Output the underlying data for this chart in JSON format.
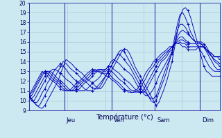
{
  "xlabel": "Température (°c)",
  "bg_color": "#cce8f0",
  "grid_color": "#aaccd8",
  "line_color": "#0000bb",
  "ylim": [
    9,
    20
  ],
  "yticks": [
    9,
    10,
    11,
    12,
    13,
    14,
    15,
    16,
    17,
    18,
    19,
    20
  ],
  "day_labels": [
    "Jeu",
    "Ven",
    "Sam",
    "Dim"
  ],
  "day_positions": [
    0.185,
    0.435,
    0.66,
    0.895
  ],
  "num_points": 73,
  "lines": [
    [
      10.5,
      10.2,
      9.8,
      9.5,
      9.3,
      9.2,
      9.5,
      10.0,
      10.5,
      11.0,
      11.5,
      12.0,
      12.8,
      13.5,
      14.2,
      14.0,
      13.8,
      13.5,
      13.2,
      13.0,
      12.8,
      12.5,
      12.2,
      12.0,
      11.8,
      11.5,
      11.3,
      11.2,
      11.5,
      12.0,
      12.5,
      13.0,
      13.5,
      14.0,
      14.5,
      15.0,
      15.3,
      15.2,
      14.8,
      14.2,
      13.5,
      13.0,
      12.5,
      12.0,
      11.5,
      11.0,
      10.5,
      10.0,
      9.5,
      9.8,
      10.5,
      11.2,
      12.0,
      13.0,
      14.0,
      15.5,
      17.0,
      18.5,
      19.3,
      19.5,
      19.2,
      18.5,
      17.5,
      16.5,
      15.5,
      14.5,
      13.5,
      13.0,
      12.8,
      12.5,
      12.5,
      12.5,
      12.5
    ],
    [
      10.5,
      10.2,
      9.8,
      9.5,
      9.5,
      10.0,
      10.5,
      11.0,
      11.5,
      12.0,
      12.5,
      13.0,
      13.5,
      14.0,
      13.8,
      13.5,
      13.2,
      13.0,
      12.8,
      12.5,
      12.2,
      12.0,
      11.8,
      11.5,
      11.3,
      11.2,
      11.2,
      11.5,
      12.0,
      12.5,
      13.0,
      13.5,
      14.0,
      14.5,
      15.0,
      15.2,
      15.0,
      14.5,
      14.0,
      13.5,
      13.0,
      12.5,
      12.0,
      11.5,
      11.0,
      10.5,
      10.0,
      9.8,
      10.0,
      10.8,
      11.5,
      12.2,
      13.0,
      14.0,
      15.0,
      16.5,
      17.8,
      18.8,
      19.0,
      18.5,
      17.8,
      17.0,
      16.5,
      15.8,
      15.5,
      15.0,
      14.5,
      14.0,
      13.5,
      13.2,
      13.0,
      13.0,
      13.0
    ],
    [
      10.5,
      10.0,
      9.8,
      9.8,
      10.2,
      10.8,
      11.2,
      11.8,
      12.2,
      12.8,
      13.2,
      13.5,
      13.8,
      13.5,
      13.2,
      12.8,
      12.5,
      12.2,
      12.0,
      11.8,
      11.5,
      11.2,
      11.0,
      11.0,
      11.0,
      11.2,
      11.5,
      11.8,
      12.2,
      12.5,
      13.0,
      13.5,
      14.0,
      14.5,
      14.8,
      14.5,
      14.2,
      13.8,
      13.5,
      13.0,
      12.5,
      12.0,
      11.5,
      11.0,
      10.8,
      10.5,
      10.2,
      10.2,
      10.5,
      11.2,
      12.0,
      12.8,
      13.5,
      14.2,
      14.8,
      16.0,
      17.2,
      17.8,
      17.8,
      17.5,
      17.0,
      16.5,
      16.2,
      16.0,
      16.0,
      15.8,
      15.5,
      15.0,
      14.5,
      14.0,
      13.5,
      13.2,
      13.2
    ],
    [
      10.5,
      10.0,
      10.0,
      10.5,
      11.0,
      11.5,
      12.0,
      12.5,
      13.0,
      13.2,
      13.2,
      13.0,
      12.8,
      12.5,
      12.2,
      12.0,
      11.8,
      11.5,
      11.2,
      11.0,
      11.0,
      11.0,
      11.2,
      11.5,
      11.8,
      12.0,
      12.2,
      12.5,
      13.0,
      13.2,
      13.5,
      14.0,
      14.2,
      14.0,
      13.8,
      13.5,
      13.2,
      13.0,
      12.8,
      12.5,
      12.0,
      11.5,
      11.0,
      10.8,
      10.5,
      10.5,
      10.8,
      11.2,
      11.8,
      12.5,
      13.0,
      13.5,
      14.0,
      14.5,
      15.0,
      15.8,
      16.5,
      17.0,
      17.2,
      17.0,
      16.8,
      16.5,
      16.2,
      16.0,
      16.0,
      16.0,
      15.8,
      15.5,
      15.0,
      14.5,
      14.0,
      13.8,
      13.5
    ],
    [
      10.5,
      10.2,
      10.5,
      11.0,
      11.5,
      12.0,
      12.5,
      13.0,
      13.0,
      12.8,
      12.5,
      12.2,
      12.0,
      11.8,
      11.5,
      11.2,
      11.0,
      11.0,
      11.0,
      11.2,
      11.5,
      11.8,
      12.0,
      12.2,
      12.5,
      12.8,
      13.0,
      13.2,
      13.2,
      13.2,
      13.5,
      13.5,
      13.2,
      13.0,
      12.8,
      12.5,
      12.2,
      12.0,
      11.8,
      11.5,
      11.2,
      11.0,
      10.8,
      10.8,
      11.0,
      11.5,
      12.0,
      12.5,
      13.0,
      13.5,
      14.0,
      14.2,
      14.5,
      15.0,
      15.2,
      15.8,
      16.2,
      16.5,
      16.5,
      16.2,
      16.0,
      15.8,
      15.8,
      15.8,
      15.8,
      15.8,
      15.5,
      15.2,
      14.8,
      14.5,
      14.2,
      14.0,
      13.8
    ],
    [
      10.5,
      10.5,
      11.0,
      11.5,
      12.0,
      12.5,
      13.0,
      13.0,
      12.8,
      12.5,
      12.2,
      12.0,
      11.8,
      11.5,
      11.2,
      11.0,
      11.0,
      11.0,
      11.2,
      11.5,
      11.8,
      12.0,
      12.2,
      12.5,
      12.8,
      13.0,
      13.2,
      13.2,
      13.0,
      13.0,
      13.2,
      13.0,
      12.8,
      12.5,
      12.2,
      12.0,
      11.8,
      11.5,
      11.2,
      11.0,
      11.0,
      10.8,
      10.8,
      11.0,
      11.5,
      12.0,
      12.5,
      13.0,
      13.5,
      14.0,
      14.2,
      14.5,
      14.8,
      15.2,
      15.5,
      15.8,
      16.0,
      16.2,
      16.2,
      16.0,
      15.8,
      15.8,
      15.8,
      15.8,
      15.8,
      15.8,
      15.5,
      15.2,
      14.8,
      14.5,
      14.5,
      14.5,
      14.2
    ],
    [
      10.5,
      10.8,
      11.2,
      11.8,
      12.2,
      12.8,
      13.0,
      12.8,
      12.5,
      12.2,
      12.0,
      11.8,
      11.5,
      11.2,
      11.0,
      11.0,
      11.0,
      11.2,
      11.5,
      11.8,
      12.0,
      12.2,
      12.5,
      12.8,
      13.0,
      13.2,
      13.0,
      13.0,
      12.8,
      12.8,
      12.8,
      12.5,
      12.2,
      12.0,
      11.8,
      11.5,
      11.2,
      11.0,
      11.0,
      10.8,
      10.8,
      11.0,
      11.2,
      11.8,
      12.2,
      12.8,
      13.2,
      13.5,
      14.0,
      14.2,
      14.5,
      14.8,
      15.0,
      15.2,
      15.5,
      15.8,
      15.8,
      16.0,
      15.8,
      15.8,
      15.5,
      15.5,
      15.5,
      15.5,
      15.5,
      15.5,
      15.5,
      15.2,
      15.0,
      14.8,
      14.5,
      14.5,
      14.5
    ],
    [
      10.5,
      11.0,
      11.5,
      12.0,
      12.5,
      13.0,
      12.8,
      12.5,
      12.2,
      12.0,
      11.8,
      11.5,
      11.2,
      11.0,
      11.0,
      11.0,
      11.2,
      11.5,
      11.8,
      12.0,
      12.2,
      12.5,
      12.8,
      13.0,
      13.2,
      13.0,
      13.0,
      12.8,
      12.8,
      12.5,
      12.5,
      12.2,
      12.0,
      11.8,
      11.5,
      11.2,
      11.0,
      11.0,
      10.8,
      10.8,
      11.0,
      11.2,
      11.8,
      12.2,
      12.8,
      13.2,
      13.5,
      14.0,
      14.2,
      14.5,
      14.8,
      15.0,
      15.2,
      15.5,
      15.5,
      15.8,
      15.8,
      15.8,
      15.5,
      15.5,
      15.2,
      15.2,
      15.2,
      15.2,
      15.5,
      15.5,
      15.5,
      15.2,
      15.0,
      14.8,
      14.5,
      14.5,
      14.5
    ]
  ]
}
